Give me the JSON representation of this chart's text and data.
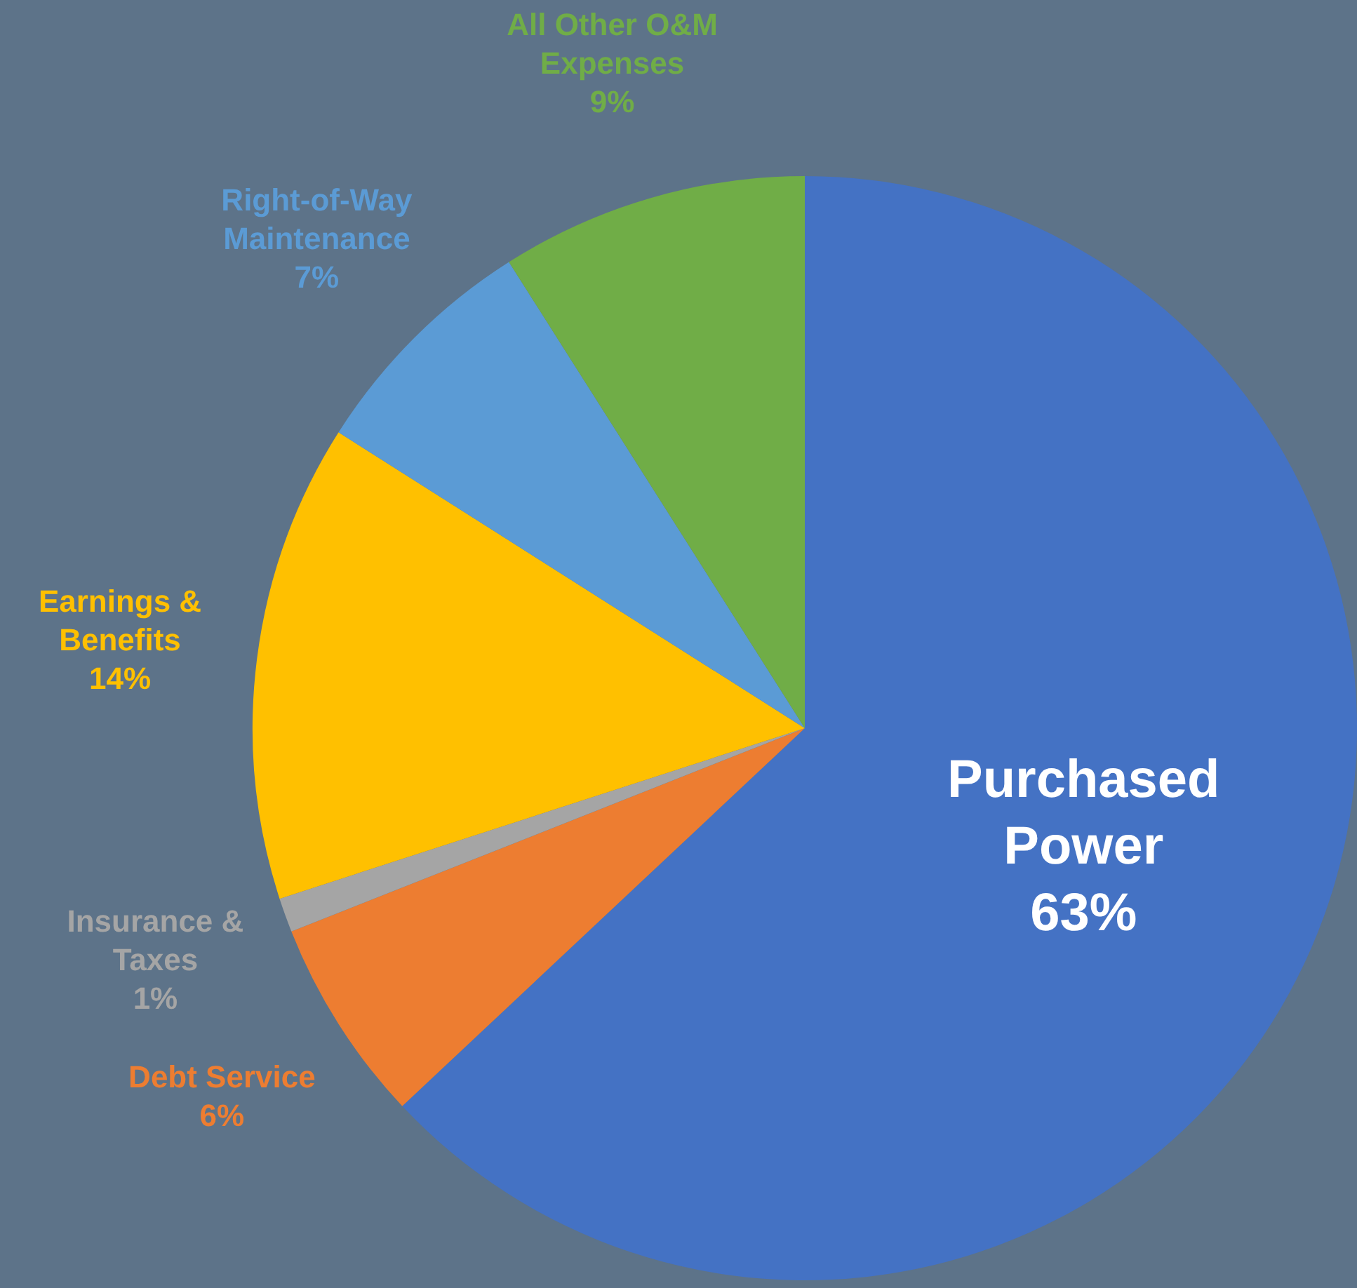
{
  "chart_data": {
    "type": "pie",
    "categories": [
      "Purchased Power",
      "Debt Service",
      "Insurance & Taxes",
      "Earnings & Benefits",
      "Right-of-Way Maintenance",
      "All Other O&M Expenses"
    ],
    "values": [
      63,
      6,
      1,
      14,
      7,
      9
    ],
    "colors": [
      "#4472c4",
      "#ed7d31",
      "#a5a5a5",
      "#ffc000",
      "#5b9bd5",
      "#70ad47"
    ],
    "value_labels": [
      "63%",
      "6%",
      "1%",
      "14%",
      "7%",
      "9%"
    ],
    "legend": false
  }
}
